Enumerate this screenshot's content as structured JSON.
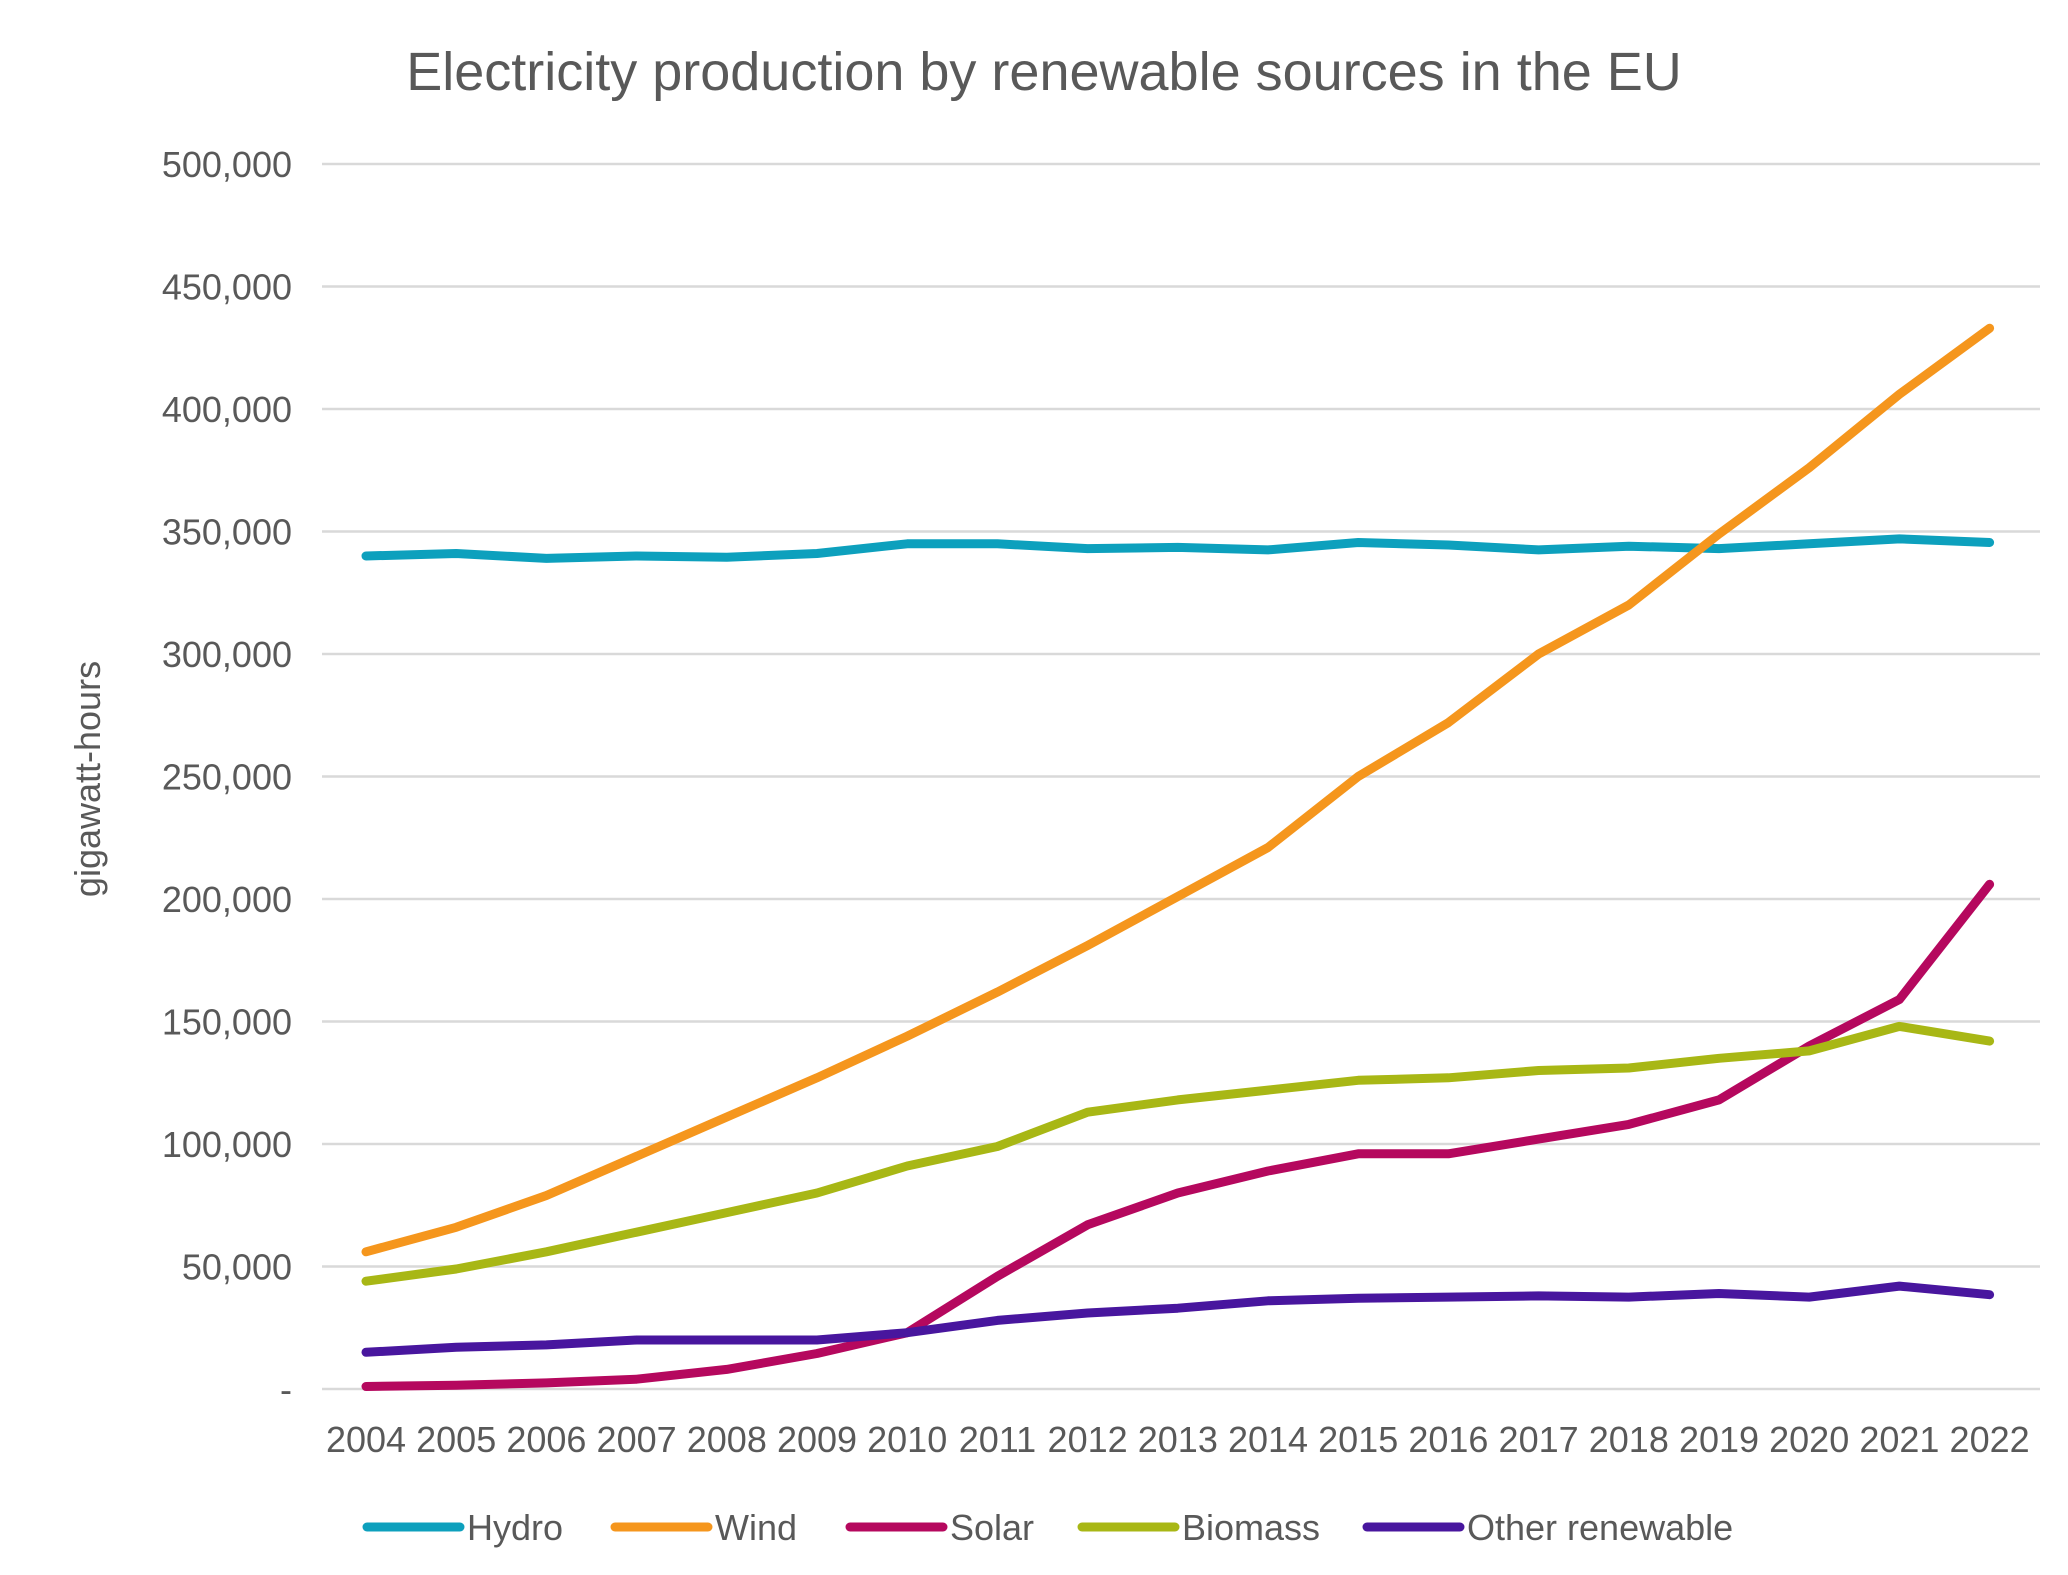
{
  "chart_data": {
    "type": "line",
    "title": "Electricity production by renewable sources in the EU",
    "xlabel": "",
    "ylabel": "gigawatt-hours",
    "categories": [
      "2004",
      "2005",
      "2006",
      "2007",
      "2008",
      "2009",
      "2010",
      "2011",
      "2012",
      "2013",
      "2014",
      "2015",
      "2016",
      "2017",
      "2018",
      "2019",
      "2020",
      "2021",
      "2022"
    ],
    "ylim": [
      0,
      500000
    ],
    "yticks": [
      {
        "value": 0,
        "label": "-"
      },
      {
        "value": 50000,
        "label": "50,000"
      },
      {
        "value": 100000,
        "label": "100,000"
      },
      {
        "value": 150000,
        "label": "150,000"
      },
      {
        "value": 200000,
        "label": "200,000"
      },
      {
        "value": 250000,
        "label": "250,000"
      },
      {
        "value": 300000,
        "label": "300,000"
      },
      {
        "value": 350000,
        "label": "350,000"
      },
      {
        "value": 400000,
        "label": "400,000"
      },
      {
        "value": 450000,
        "label": "450,000"
      },
      {
        "value": 500000,
        "label": "500,000"
      }
    ],
    "grid": true,
    "legend_position": "bottom",
    "series": [
      {
        "name": "Hydro",
        "color": "#0da0bd",
        "values": [
          340000,
          341000,
          339000,
          340000,
          339500,
          341000,
          345000,
          345000,
          343000,
          343500,
          342500,
          345500,
          344500,
          342500,
          344000,
          343000,
          345000,
          347000,
          345500
        ]
      },
      {
        "name": "Wind",
        "color": "#f5961d",
        "values": [
          56000,
          66000,
          79000,
          95000,
          111000,
          127000,
          144000,
          162000,
          181000,
          201000,
          221000,
          250000,
          272000,
          300000,
          320000,
          349000,
          376000,
          406000,
          433000
        ]
      },
      {
        "name": "Solar",
        "color": "#b5085e",
        "values": [
          1000,
          1500,
          2500,
          4000,
          8000,
          14500,
          23000,
          46000,
          67000,
          80000,
          89000,
          96000,
          96000,
          102000,
          108000,
          118000,
          140000,
          159000,
          206000
        ]
      },
      {
        "name": "Biomass",
        "color": "#a8b715",
        "values": [
          44000,
          49000,
          56000,
          64000,
          72000,
          80000,
          91000,
          99000,
          113000,
          118000,
          122000,
          126000,
          127000,
          130000,
          131000,
          135000,
          138000,
          148000,
          142000
        ]
      },
      {
        "name": "Other renewable",
        "color": "#48169e",
        "values": [
          15000,
          17000,
          18000,
          20000,
          20000,
          20000,
          23000,
          28000,
          31000,
          33000,
          36000,
          37000,
          37500,
          38000,
          37500,
          39000,
          37500,
          42000,
          38500
        ]
      }
    ]
  }
}
